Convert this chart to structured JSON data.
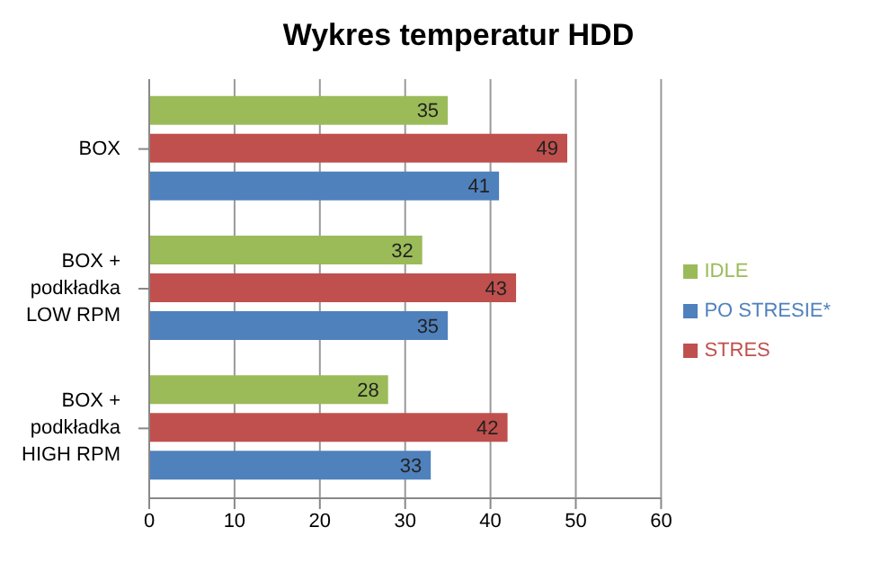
{
  "chart_data": {
    "type": "bar",
    "orientation": "horizontal",
    "title": "Wykres temperatur HDD",
    "categories": [
      "BOX",
      "BOX + podkładka LOW RPM",
      "BOX + podkładka HIGH RPM"
    ],
    "series": [
      {
        "name": "IDLE",
        "color": "#9bbb59",
        "values": [
          35,
          32,
          28
        ]
      },
      {
        "name": "STRES",
        "color": "#c0504d",
        "values": [
          49,
          43,
          42
        ]
      },
      {
        "name": "PO STRESIE*",
        "color": "#4f81bd",
        "values": [
          41,
          35,
          33
        ]
      }
    ],
    "xlim": [
      0,
      60
    ],
    "xticks": [
      0,
      10,
      20,
      30,
      40,
      50,
      60
    ],
    "grid": "x",
    "legend": "right",
    "data_labels": true
  }
}
